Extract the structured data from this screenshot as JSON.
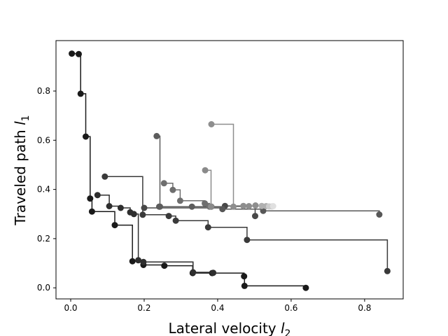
{
  "chart_data": {
    "type": "line",
    "step": "post",
    "xlabel": "Lateral velocity",
    "xlabel_sub": "2",
    "ylabel": "Traveled path",
    "ylabel_sub": "1",
    "xlim": [
      -0.04,
      0.905
    ],
    "ylim": [
      -0.045,
      1.005
    ],
    "x_ticks": [
      0.0,
      0.2,
      0.4,
      0.6,
      0.8
    ],
    "x_tick_labels": [
      "0.0",
      "0.2",
      "0.4",
      "0.6",
      "0.8"
    ],
    "y_ticks": [
      0.0,
      0.2,
      0.4,
      0.6,
      0.8
    ],
    "y_tick_labels": [
      "0.0",
      "0.2",
      "0.4",
      "0.6",
      "0.8"
    ],
    "grid": false,
    "legend": "none",
    "series": [
      {
        "color": "#1a1a1a",
        "points": [
          [
            0.003,
            0.952
          ],
          [
            0.022,
            0.95
          ],
          [
            0.027,
            0.789
          ],
          [
            0.041,
            0.615
          ],
          [
            0.053,
            0.363
          ],
          [
            0.058,
            0.31
          ],
          [
            0.12,
            0.255
          ],
          [
            0.168,
            0.108
          ],
          [
            0.198,
            0.093
          ],
          [
            0.255,
            0.09
          ],
          [
            0.332,
            0.06
          ],
          [
            0.385,
            0.06
          ],
          [
            0.472,
            0.047
          ],
          [
            0.473,
            0.008
          ],
          [
            0.64,
            0.0
          ]
        ]
      },
      {
        "color": "#2e2e2e",
        "points": [
          [
            0.073,
            0.377
          ],
          [
            0.105,
            0.332
          ],
          [
            0.136,
            0.325
          ],
          [
            0.162,
            0.307
          ],
          [
            0.172,
            0.3
          ],
          [
            0.184,
            0.112
          ],
          [
            0.198,
            0.105
          ],
          [
            0.333,
            0.063
          ],
          [
            0.388,
            0.061
          ]
        ]
      },
      {
        "color": "#3a3a3a",
        "points": [
          [
            0.093,
            0.452
          ],
          [
            0.196,
            0.297
          ],
          [
            0.267,
            0.292
          ],
          [
            0.286,
            0.273
          ],
          [
            0.374,
            0.246
          ],
          [
            0.48,
            0.195
          ],
          [
            0.862,
            0.068
          ]
        ]
      },
      {
        "color": "#484848",
        "points": [
          [
            0.2,
            0.325
          ],
          [
            0.42,
            0.333
          ],
          [
            0.502,
            0.292
          ]
        ]
      },
      {
        "color": "#575757",
        "points": [
          [
            0.241,
            0.33
          ],
          [
            0.413,
            0.32
          ],
          [
            0.524,
            0.313
          ],
          [
            0.84,
            0.298
          ]
        ]
      },
      {
        "color": "#5c5c5c",
        "points": [
          [
            0.234,
            0.617
          ],
          [
            0.243,
            0.33
          ],
          [
            0.33,
            0.33
          ]
        ]
      },
      {
        "color": "#6e6e6e",
        "points": [
          [
            0.254,
            0.425
          ],
          [
            0.278,
            0.398
          ],
          [
            0.298,
            0.354
          ],
          [
            0.365,
            0.343
          ],
          [
            0.378,
            0.33
          ],
          [
            0.383,
            0.33
          ]
        ]
      },
      {
        "color": "#8a8a8a",
        "points": [
          [
            0.366,
            0.478
          ],
          [
            0.382,
            0.33
          ]
        ]
      },
      {
        "color": "#8e8e8e",
        "points": [
          [
            0.383,
            0.665
          ],
          [
            0.443,
            0.33
          ],
          [
            0.47,
            0.333
          ],
          [
            0.485,
            0.332
          ],
          [
            0.503,
            0.335
          ]
        ]
      },
      {
        "color": "#b0b0b0",
        "points": [
          [
            0.52,
            0.333
          ],
          [
            0.532,
            0.332
          ]
        ]
      },
      {
        "color": "#cccccc",
        "points": [
          [
            0.54,
            0.331
          ],
          [
            0.548,
            0.331
          ]
        ]
      },
      {
        "color": "#e0e0e0",
        "points": [
          [
            0.551,
            0.332
          ]
        ]
      }
    ]
  }
}
